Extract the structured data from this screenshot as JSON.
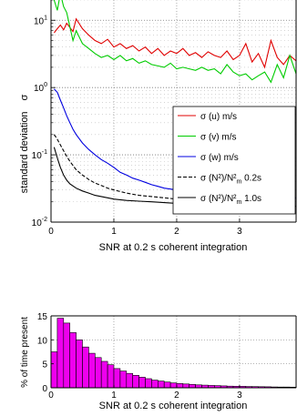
{
  "chart_data": [
    {
      "type": "line",
      "xlabel": "SNR at 0.2 s coherent integration",
      "ylabel_main": "standard deviation",
      "ylabel_symbol": "σ",
      "xlim": [
        0,
        3.9
      ],
      "ylim": [
        0.01,
        20
      ],
      "yscale": "log",
      "grid": true,
      "legend_position": "center-right",
      "x_ticks": [
        "0",
        "1",
        "2",
        "3"
      ],
      "y_ticks": [
        {
          "base": "10",
          "exp": "-2",
          "value": 0.01
        },
        {
          "base": "10",
          "exp": "-1",
          "value": 0.1
        },
        {
          "base": "10",
          "exp": "0",
          "value": 1
        },
        {
          "base": "10",
          "exp": "1",
          "value": 10
        }
      ],
      "legend": [
        {
          "prefix": "σ ",
          "main": "(u) m/s",
          "color": "#e00000",
          "dash": "solid"
        },
        {
          "prefix": "σ ",
          "main": "(v) m/s",
          "color": "#00cc00",
          "dash": "solid"
        },
        {
          "prefix": "σ ",
          "main": "(w) m/s",
          "color": "#0000e0",
          "dash": "solid"
        },
        {
          "prefix": "σ ",
          "main": "(N²)/N²",
          "sub": "m",
          "suffix": " 0.2s",
          "color": "#000000",
          "dash": "dashed"
        },
        {
          "prefix": "σ ",
          "main": "(N²)/N²",
          "sub": "m",
          "suffix": "  1.0s",
          "color": "#000000",
          "dash": "solid"
        }
      ],
      "series": [
        {
          "color": "#e00000",
          "dash": "solid",
          "x": [
            0.05,
            0.1,
            0.15,
            0.2,
            0.25,
            0.3,
            0.35,
            0.4,
            0.5,
            0.6,
            0.7,
            0.8,
            0.9,
            1.0,
            1.1,
            1.2,
            1.3,
            1.4,
            1.5,
            1.6,
            1.7,
            1.8,
            1.9,
            2.0,
            2.1,
            2.2,
            2.3,
            2.4,
            2.5,
            2.6,
            2.7,
            2.8,
            2.9,
            3.0,
            3.1,
            3.2,
            3.3,
            3.4,
            3.5,
            3.6,
            3.7,
            3.8,
            3.9
          ],
          "y": [
            6.5,
            7.5,
            8.5,
            7.2,
            9.0,
            7.8,
            6.8,
            10.5,
            7.5,
            6.0,
            5.0,
            4.5,
            5.2,
            4.0,
            4.5,
            3.8,
            4.2,
            3.5,
            4.0,
            3.2,
            3.8,
            3.0,
            3.5,
            3.2,
            3.8,
            3.0,
            3.3,
            2.8,
            3.4,
            3.0,
            2.8,
            3.5,
            2.6,
            3.0,
            4.5,
            2.4,
            3.2,
            2.0,
            5.0,
            2.8,
            2.2,
            3.0,
            2.5
          ]
        },
        {
          "color": "#00cc00",
          "dash": "solid",
          "x": [
            0.05,
            0.1,
            0.15,
            0.2,
            0.25,
            0.3,
            0.35,
            0.4,
            0.5,
            0.6,
            0.7,
            0.8,
            0.9,
            1.0,
            1.1,
            1.2,
            1.3,
            1.4,
            1.5,
            1.6,
            1.7,
            1.8,
            1.9,
            2.0,
            2.1,
            2.2,
            2.3,
            2.4,
            2.5,
            2.6,
            2.7,
            2.8,
            2.9,
            3.0,
            3.1,
            3.2,
            3.3,
            3.4,
            3.5,
            3.6,
            3.7,
            3.8,
            3.9
          ],
          "y": [
            20,
            14,
            25,
            16,
            13,
            8,
            5,
            7,
            4.5,
            3.8,
            3.2,
            2.8,
            3.0,
            2.6,
            3.0,
            2.5,
            2.7,
            2.3,
            2.5,
            2.2,
            2.1,
            2.0,
            2.3,
            1.9,
            2.0,
            1.9,
            1.8,
            2.0,
            1.8,
            1.9,
            1.6,
            2.2,
            1.7,
            1.5,
            1.6,
            1.3,
            1.5,
            1.7,
            1.2,
            2.2,
            1.4,
            3.0,
            1.6
          ]
        },
        {
          "color": "#0000e0",
          "dash": "solid",
          "x": [
            0.05,
            0.1,
            0.15,
            0.2,
            0.25,
            0.3,
            0.35,
            0.4,
            0.5,
            0.6,
            0.7,
            0.8,
            0.9,
            1.0,
            1.1,
            1.2,
            1.3,
            1.4,
            1.5,
            1.6,
            1.7,
            1.8,
            1.9,
            2.0,
            2.1,
            2.2,
            2.3,
            2.4,
            2.5,
            2.6,
            2.7,
            2.8,
            2.9,
            3.0,
            3.1,
            3.2,
            3.3,
            3.4,
            3.5,
            3.6,
            3.7,
            3.8,
            3.9
          ],
          "y": [
            0.95,
            0.85,
            0.65,
            0.5,
            0.38,
            0.3,
            0.24,
            0.2,
            0.15,
            0.12,
            0.1,
            0.085,
            0.075,
            0.065,
            0.055,
            0.05,
            0.045,
            0.042,
            0.039,
            0.036,
            0.034,
            0.032,
            0.031,
            0.03,
            0.029,
            0.028,
            0.027,
            0.027,
            0.026,
            0.026,
            0.025,
            0.025,
            0.024,
            0.024,
            0.024,
            0.023,
            0.023,
            0.023,
            0.022,
            0.023,
            0.022,
            0.022,
            0.023
          ]
        },
        {
          "color": "#000000",
          "dash": "dashed",
          "x": [
            0.05,
            0.1,
            0.15,
            0.2,
            0.25,
            0.3,
            0.4,
            0.5,
            0.6,
            0.7,
            0.8,
            0.9,
            1.0,
            1.2,
            1.4,
            1.6,
            1.8,
            2.0,
            2.2,
            2.4,
            2.6,
            2.8,
            3.0,
            3.2,
            3.4,
            3.6,
            3.8,
            3.9
          ],
          "y": [
            0.2,
            0.17,
            0.14,
            0.115,
            0.095,
            0.08,
            0.06,
            0.05,
            0.043,
            0.038,
            0.035,
            0.032,
            0.03,
            0.027,
            0.025,
            0.024,
            0.023,
            0.022,
            0.021,
            0.0205,
            0.02,
            0.0198,
            0.0195,
            0.019,
            0.0188,
            0.0185,
            0.0182,
            0.018
          ]
        },
        {
          "color": "#000000",
          "dash": "solid",
          "x": [
            0.05,
            0.1,
            0.15,
            0.2,
            0.25,
            0.3,
            0.4,
            0.5,
            0.6,
            0.7,
            0.8,
            0.9,
            1.0,
            1.2,
            1.4,
            1.6,
            1.8,
            2.0,
            2.2,
            2.4,
            2.6,
            2.8,
            3.0,
            3.2,
            3.4,
            3.6,
            3.8,
            3.9
          ],
          "y": [
            0.13,
            0.09,
            0.065,
            0.05,
            0.042,
            0.037,
            0.032,
            0.029,
            0.027,
            0.025,
            0.024,
            0.023,
            0.022,
            0.021,
            0.0205,
            0.02,
            0.0195,
            0.019,
            0.0188,
            0.0185,
            0.0182,
            0.018,
            0.0178,
            0.0176,
            0.0175,
            0.0174,
            0.0172,
            0.0172
          ]
        }
      ]
    },
    {
      "type": "bar",
      "xlabel": "SNR at 0.2 s coherent integration",
      "ylabel": "% of time present",
      "xlim": [
        0,
        3.9
      ],
      "ylim": [
        0,
        15
      ],
      "grid": true,
      "bar_color": "#ee00ee",
      "x_ticks": [
        "0",
        "1",
        "2",
        "3"
      ],
      "y_ticks": [
        "0",
        "5",
        "10",
        "15"
      ],
      "bin_width": 0.1,
      "x": [
        0.05,
        0.15,
        0.25,
        0.35,
        0.45,
        0.55,
        0.65,
        0.75,
        0.85,
        0.95,
        1.05,
        1.15,
        1.25,
        1.35,
        1.45,
        1.55,
        1.65,
        1.75,
        1.85,
        1.95,
        2.05,
        2.15,
        2.25,
        2.35,
        2.45,
        2.55,
        2.65,
        2.75,
        2.85,
        2.95,
        3.05,
        3.15,
        3.25,
        3.35,
        3.45,
        3.55,
        3.65,
        3.75,
        3.85
      ],
      "values": [
        7.5,
        14.5,
        13.5,
        11.5,
        10.0,
        8.5,
        7.2,
        6.3,
        5.5,
        4.8,
        4.0,
        3.5,
        3.0,
        2.6,
        2.2,
        1.9,
        1.6,
        1.4,
        1.2,
        1.0,
        0.9,
        0.8,
        0.7,
        0.6,
        0.55,
        0.5,
        0.45,
        0.4,
        0.35,
        0.32,
        0.3,
        0.27,
        0.25,
        0.22,
        0.2,
        0.18,
        0.16,
        0.15,
        0.13
      ]
    }
  ]
}
